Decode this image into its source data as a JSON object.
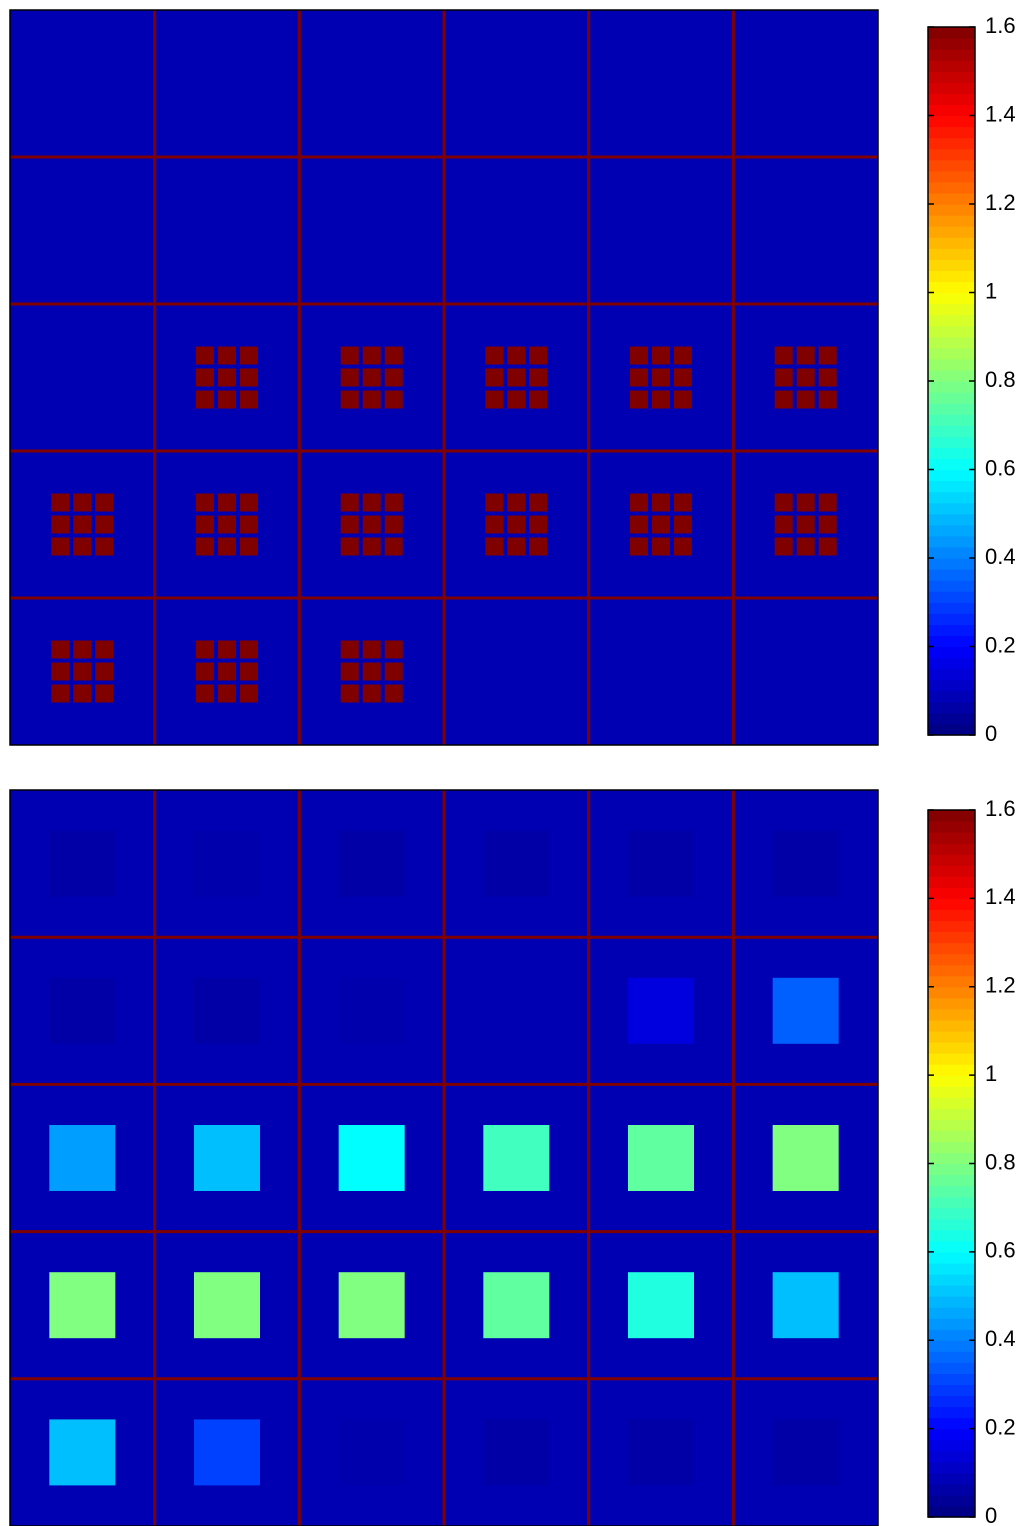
{
  "chart_data": [
    {
      "type": "heatmap",
      "colormap": "jet",
      "zlim": [
        0,
        1.6
      ],
      "zticks": [
        0,
        0.2,
        0.4,
        0.6,
        0.8,
        1,
        1.2,
        1.4,
        1.6
      ],
      "background": 0.08,
      "grid_color": "#800000",
      "pattern": "dots",
      "values": [
        [
          0,
          0,
          0,
          0,
          0,
          0
        ],
        [
          0,
          0,
          0,
          0,
          0,
          0
        ],
        [
          0,
          1.6,
          1.6,
          1.6,
          1.6,
          1.6
        ],
        [
          1.6,
          1.6,
          1.6,
          1.6,
          1.6,
          1.6
        ],
        [
          1.6,
          1.6,
          1.6,
          0,
          0,
          0
        ]
      ]
    },
    {
      "type": "heatmap",
      "colormap": "jet",
      "zlim": [
        0,
        1.6
      ],
      "zticks": [
        0,
        0.2,
        0.4,
        0.6,
        0.8,
        1,
        1.2,
        1.4,
        1.6
      ],
      "background": 0.08,
      "grid_color": "#800000",
      "pattern": "block",
      "values": [
        [
          0.06,
          0.07,
          0.06,
          0.06,
          0.06,
          0.06
        ],
        [
          0.06,
          0.06,
          0.07,
          0.08,
          0.15,
          0.35
        ],
        [
          0.45,
          0.5,
          0.6,
          0.7,
          0.75,
          0.8
        ],
        [
          0.8,
          0.8,
          0.8,
          0.75,
          0.65,
          0.5
        ],
        [
          0.5,
          0.3,
          0.07,
          0.06,
          0.06,
          0.06
        ]
      ]
    }
  ]
}
